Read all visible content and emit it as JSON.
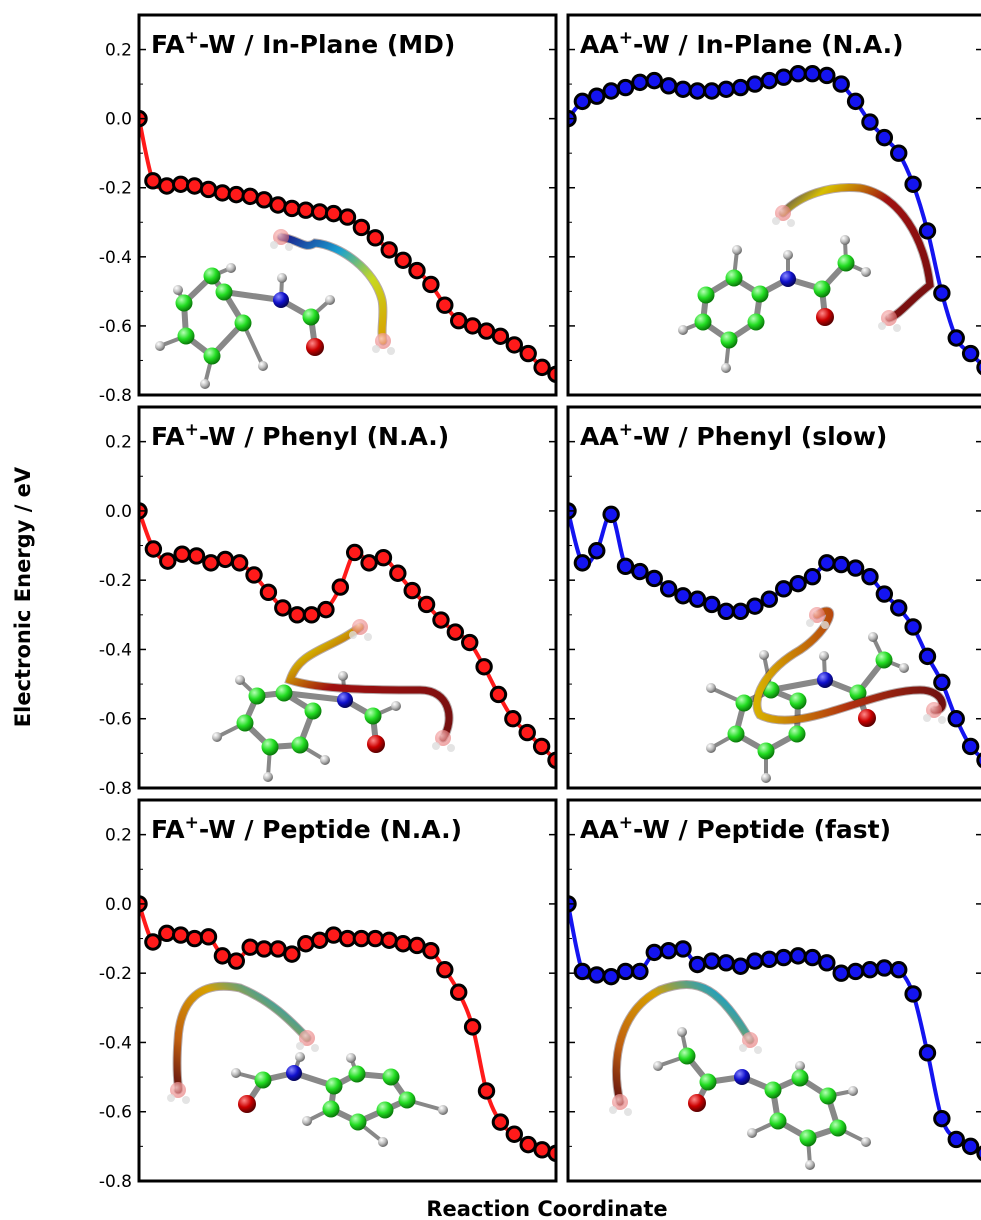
{
  "figure": {
    "ylabel": "Electronic Energy / eV",
    "xlabel": "Reaction Coordinate"
  },
  "colors": {
    "FA": "#ff1a1a",
    "AA": "#1414f0",
    "marker_edge": "#000000",
    "carbon": "#22dd22",
    "nitrogen": "#1010cc",
    "oxygen": "#cc0000",
    "hydrogen": "#9a9a9a",
    "bond": "#808080"
  },
  "chart_data": [
    {
      "type": "line",
      "panel": "FA-W In-Plane",
      "title_main": "FA",
      "title_sup": "+",
      "title_rest": "-W / In-Plane (MD)",
      "color_key": "FA",
      "xlabel": "Reaction Coordinate",
      "ylabel": "Electronic Energy / eV",
      "ylim": [
        -0.8,
        0.3
      ],
      "yticks": [
        "0.2",
        "0.0",
        "-0.2",
        "-0.4",
        "-0.6",
        "-0.8"
      ],
      "x": [
        0,
        1,
        2,
        3,
        4,
        5,
        6,
        7,
        8,
        9,
        10,
        11,
        12,
        13,
        14,
        15,
        16,
        17,
        18,
        19,
        20,
        21,
        22,
        23,
        24,
        25,
        26,
        27,
        28,
        29,
        30
      ],
      "y": [
        0.0,
        -0.18,
        -0.195,
        -0.19,
        -0.195,
        -0.205,
        -0.215,
        -0.22,
        -0.225,
        -0.235,
        -0.25,
        -0.26,
        -0.265,
        -0.27,
        -0.275,
        -0.285,
        -0.315,
        -0.345,
        -0.38,
        -0.41,
        -0.44,
        -0.48,
        -0.54,
        -0.585,
        -0.6,
        -0.615,
        -0.63,
        -0.655,
        -0.68,
        -0.72,
        -0.74
      ]
    },
    {
      "type": "line",
      "panel": "AA-W In-Plane",
      "title_main": "AA",
      "title_sup": "+",
      "title_rest": "-W / In-Plane (N.A.)",
      "color_key": "AA",
      "xlabel": "Reaction Coordinate",
      "ylabel": "Electronic Energy / eV",
      "ylim": [
        -0.8,
        0.3
      ],
      "yticks": [
        "0.2",
        "0.0",
        "-0.2",
        "-0.4",
        "-0.6",
        "-0.8"
      ],
      "x": [
        0,
        1,
        2,
        3,
        4,
        5,
        6,
        7,
        8,
        9,
        10,
        11,
        12,
        13,
        14,
        15,
        16,
        17,
        18,
        19,
        20,
        21,
        22,
        23,
        24,
        25,
        26,
        27,
        28,
        29
      ],
      "y": [
        0.0,
        0.05,
        0.065,
        0.08,
        0.09,
        0.105,
        0.11,
        0.095,
        0.085,
        0.08,
        0.08,
        0.085,
        0.09,
        0.1,
        0.11,
        0.12,
        0.13,
        0.13,
        0.125,
        0.1,
        0.05,
        -0.01,
        -0.055,
        -0.1,
        -0.19,
        -0.325,
        -0.505,
        -0.635,
        -0.68,
        -0.72
      ]
    },
    {
      "type": "line",
      "panel": "FA-W Phenyl",
      "title_main": "FA",
      "title_sup": "+",
      "title_rest": "-W / Phenyl (N.A.)",
      "color_key": "FA",
      "xlabel": "Reaction Coordinate",
      "ylabel": "Electronic Energy / eV",
      "ylim": [
        -0.8,
        0.3
      ],
      "yticks": [
        "0.2",
        "0.0",
        "-0.2",
        "-0.4",
        "-0.6",
        "-0.8"
      ],
      "x": [
        0,
        1,
        2,
        3,
        4,
        5,
        6,
        7,
        8,
        9,
        10,
        11,
        12,
        13,
        14,
        15,
        16,
        17,
        18,
        19,
        20,
        21,
        22,
        23,
        24,
        25,
        26,
        27,
        28,
        29
      ],
      "y": [
        0.0,
        -0.11,
        -0.145,
        -0.125,
        -0.13,
        -0.15,
        -0.14,
        -0.15,
        -0.185,
        -0.235,
        -0.28,
        -0.3,
        -0.3,
        -0.285,
        -0.22,
        -0.12,
        -0.15,
        -0.135,
        -0.18,
        -0.23,
        -0.27,
        -0.315,
        -0.35,
        -0.38,
        -0.45,
        -0.53,
        -0.6,
        -0.64,
        -0.68,
        -0.72
      ]
    },
    {
      "type": "line",
      "panel": "AA-W Phenyl",
      "title_main": "AA",
      "title_sup": "+",
      "title_rest": "-W / Phenyl (slow)",
      "color_key": "AA",
      "xlabel": "Reaction Coordinate",
      "ylabel": "Electronic Energy / eV",
      "ylim": [
        -0.8,
        0.3
      ],
      "yticks": [
        "0.2",
        "0.0",
        "-0.2",
        "-0.4",
        "-0.6",
        "-0.8"
      ],
      "x": [
        0,
        1,
        2,
        3,
        4,
        5,
        6,
        7,
        8,
        9,
        10,
        11,
        12,
        13,
        14,
        15,
        16,
        17,
        18,
        19,
        20,
        21,
        22,
        23,
        24,
        25,
        26,
        27,
        28,
        29
      ],
      "y": [
        0.0,
        -0.15,
        -0.115,
        -0.01,
        -0.16,
        -0.175,
        -0.195,
        -0.225,
        -0.245,
        -0.255,
        -0.27,
        -0.29,
        -0.29,
        -0.275,
        -0.255,
        -0.225,
        -0.21,
        -0.19,
        -0.15,
        -0.155,
        -0.165,
        -0.19,
        -0.24,
        -0.28,
        -0.335,
        -0.42,
        -0.495,
        -0.6,
        -0.68,
        -0.72
      ]
    },
    {
      "type": "line",
      "panel": "FA-W Peptide",
      "title_main": "FA",
      "title_sup": "+",
      "title_rest": "-W / Peptide (N.A.)",
      "color_key": "FA",
      "xlabel": "Reaction Coordinate",
      "ylabel": "Electronic Energy / eV",
      "ylim": [
        -0.8,
        0.3
      ],
      "yticks": [
        "0.2",
        "0.0",
        "-0.2",
        "-0.4",
        "-0.6",
        "-0.8"
      ],
      "x": [
        0,
        1,
        2,
        3,
        4,
        5,
        6,
        7,
        8,
        9,
        10,
        11,
        12,
        13,
        14,
        15,
        16,
        17,
        18,
        19,
        20,
        21,
        22,
        23,
        24,
        25,
        26,
        27,
        28,
        29,
        30
      ],
      "y": [
        0.0,
        -0.11,
        -0.085,
        -0.09,
        -0.1,
        -0.095,
        -0.15,
        -0.165,
        -0.125,
        -0.13,
        -0.13,
        -0.145,
        -0.115,
        -0.105,
        -0.09,
        -0.1,
        -0.1,
        -0.1,
        -0.105,
        -0.115,
        -0.12,
        -0.135,
        -0.19,
        -0.255,
        -0.355,
        -0.54,
        -0.63,
        -0.665,
        -0.695,
        -0.71,
        -0.72
      ]
    },
    {
      "type": "line",
      "panel": "AA-W Peptide",
      "title_main": "AA",
      "title_sup": "+",
      "title_rest": "-W / Peptide (fast)",
      "color_key": "AA",
      "xlabel": "Reaction Coordinate",
      "ylabel": "Electronic Energy / eV",
      "ylim": [
        -0.8,
        0.3
      ],
      "yticks": [
        "0.2",
        "0.0",
        "-0.2",
        "-0.4",
        "-0.6",
        "-0.8"
      ],
      "x": [
        0,
        1,
        2,
        3,
        4,
        5,
        6,
        7,
        8,
        9,
        10,
        11,
        12,
        13,
        14,
        15,
        16,
        17,
        18,
        19,
        20,
        21,
        22,
        23,
        24,
        25,
        26,
        27,
        28,
        29
      ],
      "y": [
        0.0,
        -0.195,
        -0.205,
        -0.21,
        -0.195,
        -0.195,
        -0.14,
        -0.135,
        -0.13,
        -0.175,
        -0.165,
        -0.17,
        -0.18,
        -0.165,
        -0.16,
        -0.155,
        -0.15,
        -0.155,
        -0.17,
        -0.2,
        -0.195,
        -0.19,
        -0.185,
        -0.19,
        -0.26,
        -0.43,
        -0.62,
        -0.68,
        -0.7,
        -0.72
      ]
    }
  ]
}
